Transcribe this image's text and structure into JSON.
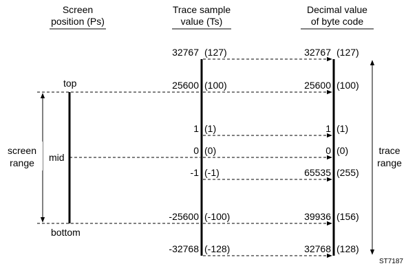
{
  "headers": {
    "screen_position": [
      "Screen",
      "position (Ps)"
    ],
    "trace_sample": [
      "Trace sample",
      "value (Ts)"
    ],
    "decimal_value": [
      "Decimal value",
      "of byte code"
    ]
  },
  "screen_labels": {
    "top": "top",
    "mid": "mid",
    "bottom": "bottom",
    "screen_range": [
      "screen",
      "range"
    ]
  },
  "trace_range_label": [
    "trace",
    "range"
  ],
  "rows": [
    {
      "key": "max",
      "ts": "32767",
      "ts_hex": "(127)",
      "dec": "32767",
      "dec_hex": "(127)"
    },
    {
      "key": "top",
      "ts": "25600",
      "ts_hex": "(100)",
      "dec": "25600",
      "dec_hex": "(100)"
    },
    {
      "key": "one",
      "ts": "1",
      "ts_hex": "(1)",
      "dec": "1",
      "dec_hex": "(1)"
    },
    {
      "key": "zero",
      "ts": "0",
      "ts_hex": "(0)",
      "dec": "0",
      "dec_hex": "(0)"
    },
    {
      "key": "minus1",
      "ts": "-1",
      "ts_hex": "(-1)",
      "dec": "65535",
      "dec_hex": "(255)"
    },
    {
      "key": "bottom",
      "ts": "-25600",
      "ts_hex": "(-100)",
      "dec": "39936",
      "dec_hex": "(156)"
    },
    {
      "key": "min",
      "ts": "-32768",
      "ts_hex": "(-128)",
      "dec": "32768",
      "dec_hex": "(128)"
    }
  ],
  "figure_id": "ST7187"
}
